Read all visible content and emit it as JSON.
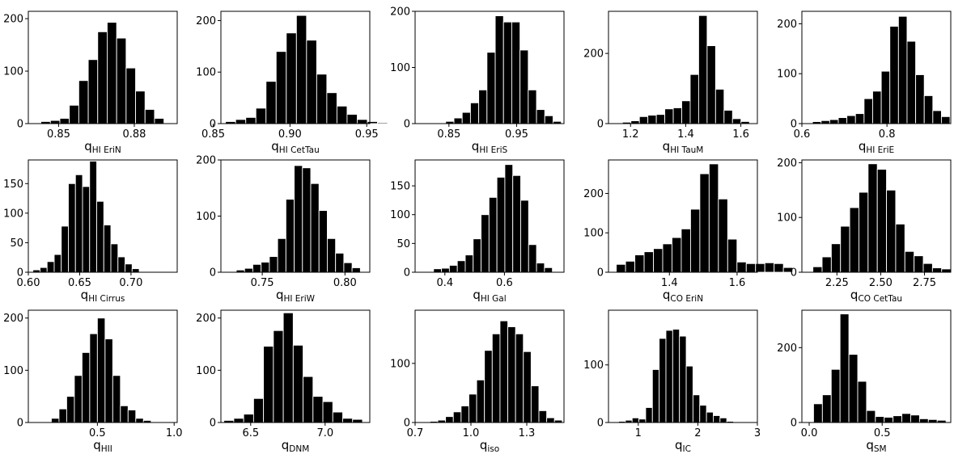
{
  "figure": {
    "rows": 3,
    "cols": 5,
    "bar_color": "#000000"
  },
  "chart_data": [
    {
      "type": "bar",
      "xlabel": {
        "main": "q",
        "sub": "HI EriN"
      },
      "bins": {
        "start": 0.843,
        "width": 0.00375
      },
      "values": [
        4,
        6,
        10,
        35,
        82,
        122,
        175,
        193,
        163,
        106,
        62,
        27,
        10,
        1
      ],
      "xlim": [
        0.838,
        0.897
      ],
      "ylim": [
        0,
        214
      ],
      "xticks": [
        {
          "v": 0.85,
          "label": "0.85"
        },
        {
          "v": 0.88,
          "label": "0.88"
        }
      ],
      "yticks": [
        {
          "v": 0,
          "label": "0"
        },
        {
          "v": 100,
          "label": "100"
        },
        {
          "v": 200,
          "label": "200"
        }
      ]
    },
    {
      "type": "bar",
      "xlabel": {
        "main": "q",
        "sub": "HI CetTau"
      },
      "bins": {
        "start": 0.858,
        "width": 0.0066
      },
      "values": [
        4,
        8,
        12,
        30,
        82,
        140,
        176,
        210,
        162,
        96,
        60,
        34,
        18,
        8,
        4,
        2
      ],
      "xlim": [
        0.855,
        0.952
      ],
      "ylim": [
        0,
        218
      ],
      "xticks": [
        {
          "v": 0.85,
          "label": "0.85"
        },
        {
          "v": 0.9,
          "label": "0.90"
        },
        {
          "v": 0.95,
          "label": "0.95"
        }
      ],
      "yticks": [
        {
          "v": 0,
          "label": "0"
        },
        {
          "v": 100,
          "label": "100"
        },
        {
          "v": 200,
          "label": "200"
        }
      ]
    },
    {
      "type": "bar",
      "xlabel": {
        "main": "q",
        "sub": "HI EriS"
      },
      "bins": {
        "start": 0.833,
        "width": 0.0122
      },
      "values": [
        1,
        4,
        10,
        20,
        37,
        60,
        127,
        192,
        181,
        181,
        131,
        60,
        25,
        14,
        4
      ],
      "xlim": [
        0.8,
        1.02
      ],
      "ylim": [
        0,
        200
      ],
      "xticks": [
        {
          "v": 0.85,
          "label": "0.85"
        },
        {
          "v": 0.95,
          "label": "0.95"
        }
      ],
      "yticks": [
        {
          "v": 0,
          "label": "0"
        },
        {
          "v": 100,
          "label": "100"
        },
        {
          "v": 200,
          "label": "200"
        }
      ]
    },
    {
      "type": "bar",
      "xlabel": {
        "main": "q",
        "sub": "HI TauM"
      },
      "bins": {
        "start": 1.14,
        "width": 0.0307
      },
      "values": [
        2,
        4,
        8,
        20,
        24,
        26,
        42,
        45,
        65,
        140,
        308,
        222,
        98,
        38,
        14,
        6
      ],
      "xlim": [
        1.12,
        1.66
      ],
      "ylim": [
        0,
        320
      ],
      "xticks": [
        {
          "v": 1.2,
          "label": "1.2"
        },
        {
          "v": 1.4,
          "label": "1.4"
        },
        {
          "v": 1.6,
          "label": "1.6"
        }
      ],
      "yticks": [
        {
          "v": 0,
          "label": "0"
        },
        {
          "v": 200,
          "label": "200"
        }
      ]
    },
    {
      "type": "bar",
      "xlabel": {
        "main": "q",
        "sub": "HI EriE"
      },
      "bins": {
        "start": 0.625,
        "width": 0.0202
      },
      "values": [
        4,
        6,
        8,
        12,
        16,
        20,
        50,
        65,
        105,
        195,
        215,
        165,
        98,
        56,
        26,
        14
      ],
      "xlim": [
        0.6,
        0.95
      ],
      "ylim": [
        0,
        225
      ],
      "xticks": [
        {
          "v": 0.6,
          "label": "0.6"
        },
        {
          "v": 0.8,
          "label": "0.8"
        }
      ],
      "yticks": [
        {
          "v": 0,
          "label": "0"
        },
        {
          "v": 100,
          "label": "100"
        },
        {
          "v": 200,
          "label": "200"
        }
      ]
    },
    {
      "type": "bar",
      "xlabel": {
        "main": "q",
        "sub": "HI Cirrus"
      },
      "bins": {
        "start": 0.6045,
        "width": 0.0069
      },
      "values": [
        4,
        8,
        18,
        30,
        78,
        150,
        165,
        145,
        188,
        120,
        80,
        48,
        26,
        14,
        6
      ],
      "xlim": [
        0.6,
        0.745
      ],
      "ylim": [
        0,
        190
      ],
      "xticks": [
        {
          "v": 0.6,
          "label": "0.60"
        },
        {
          "v": 0.65,
          "label": "0.65"
        },
        {
          "v": 0.7,
          "label": "0.70"
        }
      ],
      "yticks": [
        {
          "v": 0,
          "label": "0"
        },
        {
          "v": 50,
          "label": "50"
        },
        {
          "v": 100,
          "label": "100"
        },
        {
          "v": 150,
          "label": "150"
        }
      ]
    },
    {
      "type": "bar",
      "xlabel": {
        "main": "q",
        "sub": "HI EriW"
      },
      "bins": {
        "start": 0.7343,
        "width": 0.005
      },
      "values": [
        4,
        7,
        14,
        18,
        28,
        60,
        130,
        190,
        186,
        158,
        110,
        60,
        34,
        17,
        8
      ],
      "xlim": [
        0.725,
        0.815
      ],
      "ylim": [
        0,
        200
      ],
      "xticks": [
        {
          "v": 0.75,
          "label": "0.75"
        },
        {
          "v": 0.8,
          "label": "0.80"
        }
      ],
      "yticks": [
        {
          "v": 0,
          "label": "0"
        },
        {
          "v": 100,
          "label": "100"
        },
        {
          "v": 200,
          "label": "200"
        }
      ]
    },
    {
      "type": "bar",
      "xlabel": {
        "main": "q",
        "sub": "HI Gal"
      },
      "bins": {
        "start": 0.362,
        "width": 0.0266
      },
      "values": [
        6,
        7,
        12,
        20,
        30,
        58,
        100,
        130,
        165,
        187,
        168,
        125,
        48,
        16,
        8
      ],
      "xlim": [
        0.3,
        0.8
      ],
      "ylim": [
        0,
        195
      ],
      "xticks": [
        {
          "v": 0.4,
          "label": "0.4"
        },
        {
          "v": 0.6,
          "label": "0.6"
        }
      ],
      "yticks": [
        {
          "v": 0,
          "label": "0"
        },
        {
          "v": 50,
          "label": "50"
        },
        {
          "v": 100,
          "label": "100"
        },
        {
          "v": 150,
          "label": "150"
        }
      ]
    },
    {
      "type": "bar",
      "xlabel": {
        "main": "q",
        "sub": "CO EriN"
      },
      "bins": {
        "start": 1.243,
        "width": 0.02744
      },
      "values": [
        20,
        28,
        44,
        52,
        60,
        72,
        88,
        110,
        160,
        250,
        275,
        186,
        84,
        26,
        22,
        22,
        24,
        22,
        12
      ],
      "xlim": [
        1.22,
        1.66
      ],
      "ylim": [
        0,
        285
      ],
      "xticks": [
        {
          "v": 1.4,
          "label": "1.4"
        },
        {
          "v": 1.6,
          "label": "1.6"
        }
      ],
      "yticks": [
        {
          "v": 0,
          "label": "0"
        },
        {
          "v": 100,
          "label": "100"
        },
        {
          "v": 200,
          "label": "200"
        }
      ]
    },
    {
      "type": "bar",
      "xlabel": {
        "main": "q",
        "sub": "CO CetTau"
      },
      "bins": {
        "start": 2.113,
        "width": 0.0525
      },
      "values": [
        10,
        28,
        52,
        84,
        118,
        146,
        198,
        188,
        150,
        88,
        38,
        30,
        16,
        8,
        6
      ],
      "xlim": [
        2.05,
        2.9
      ],
      "ylim": [
        0,
        205
      ],
      "xticks": [
        {
          "v": 2.25,
          "label": "2.25"
        },
        {
          "v": 2.5,
          "label": "2.50"
        },
        {
          "v": 2.75,
          "label": "2.75"
        }
      ],
      "yticks": [
        {
          "v": 0,
          "label": "0"
        },
        {
          "v": 100,
          "label": "100"
        },
        {
          "v": 200,
          "label": "200"
        }
      ]
    },
    {
      "type": "bar",
      "xlabel": {
        "main": "q",
        "sub": "HII"
      },
      "bins": {
        "start": 0.2,
        "width": 0.05
      },
      "values": [
        8,
        26,
        50,
        90,
        134,
        170,
        200,
        160,
        90,
        32,
        24,
        8,
        4
      ],
      "xlim": [
        0.05,
        1.02
      ],
      "ylim": [
        0,
        215
      ],
      "xticks": [
        {
          "v": 0.5,
          "label": "0.5"
        },
        {
          "v": 1.0,
          "label": "1.0"
        }
      ],
      "yticks": [
        {
          "v": 0,
          "label": "0"
        },
        {
          "v": 100,
          "label": "100"
        },
        {
          "v": 200,
          "label": "200"
        }
      ]
    },
    {
      "type": "bar",
      "xlabel": {
        "main": "q",
        "sub": "DNM"
      },
      "bins": {
        "start": 6.32,
        "width": 0.0665
      },
      "values": [
        4,
        8,
        16,
        46,
        146,
        176,
        210,
        148,
        88,
        50,
        40,
        20,
        8,
        6
      ],
      "xlim": [
        6.3,
        7.3
      ],
      "ylim": [
        0,
        215
      ],
      "xticks": [
        {
          "v": 6.5,
          "label": "6.5"
        },
        {
          "v": 7.0,
          "label": "7.0"
        }
      ],
      "yticks": [
        {
          "v": 0,
          "label": "0"
        },
        {
          "v": 100,
          "label": "100"
        },
        {
          "v": 200,
          "label": "200"
        }
      ]
    },
    {
      "type": "bar",
      "xlabel": {
        "main": "q",
        "sub": "iso"
      },
      "bins": {
        "start": 0.78,
        "width": 0.0418
      },
      "values": [
        2,
        4,
        10,
        18,
        28,
        48,
        72,
        122,
        150,
        172,
        162,
        150,
        120,
        62,
        20,
        8,
        4
      ],
      "xlim": [
        0.7,
        1.5
      ],
      "ylim": [
        0,
        190
      ],
      "xticks": [
        {
          "v": 0.7,
          "label": "0.7"
        },
        {
          "v": 1.0,
          "label": "1.0"
        },
        {
          "v": 1.3,
          "label": "1.3"
        }
      ],
      "yticks": [
        {
          "v": 0,
          "label": "0"
        },
        {
          "v": 100,
          "label": "100"
        }
      ]
    },
    {
      "type": "bar",
      "xlabel": {
        "main": "q",
        "sub": "IC"
      },
      "bins": {
        "start": 0.67,
        "width": 0.1135
      },
      "values": [
        2,
        4,
        8,
        6,
        26,
        92,
        146,
        160,
        162,
        150,
        98,
        48,
        30,
        18,
        12,
        8,
        2
      ],
      "xlim": [
        0.5,
        3.0
      ],
      "ylim": [
        0,
        195
      ],
      "xticks": [
        {
          "v": 1,
          "label": "1"
        },
        {
          "v": 2,
          "label": "2"
        },
        {
          "v": 3,
          "label": "3"
        }
      ],
      "yticks": [
        {
          "v": 0,
          "label": "0"
        },
        {
          "v": 100,
          "label": "100"
        }
      ]
    },
    {
      "type": "bar",
      "xlabel": {
        "main": "q",
        "sub": "SM"
      },
      "bins": {
        "start": 0.03,
        "width": 0.0605
      },
      "values": [
        50,
        74,
        142,
        290,
        182,
        110,
        32,
        16,
        14,
        18,
        24,
        20,
        10,
        8,
        6
      ],
      "xlim": [
        -0.05,
        0.97
      ],
      "ylim": [
        0,
        300
      ],
      "xticks": [
        {
          "v": 0.0,
          "label": "0.0"
        },
        {
          "v": 0.5,
          "label": "0.5"
        }
      ],
      "yticks": [
        {
          "v": 0,
          "label": "0"
        },
        {
          "v": 200,
          "label": "200"
        }
      ]
    }
  ]
}
